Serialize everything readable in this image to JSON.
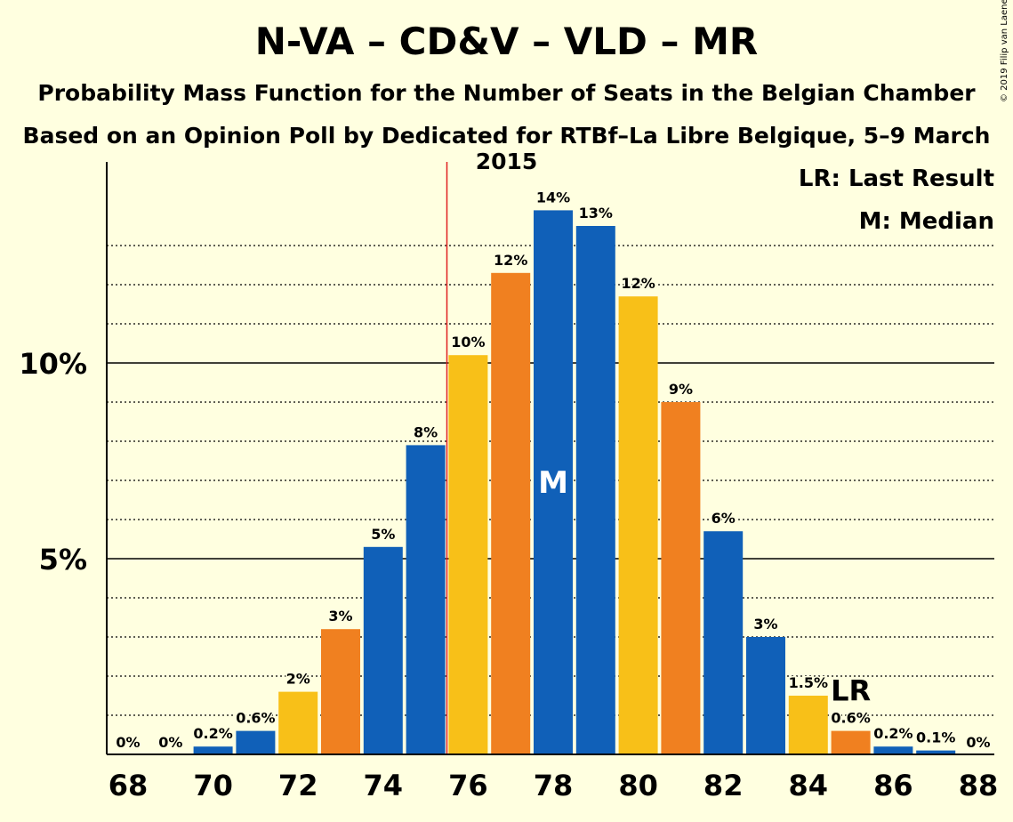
{
  "title": "N-VA – CD&V – VLD – MR",
  "subtitle1": "Probability Mass Function for the Number of Seats in the Belgian Chamber",
  "subtitle2": "Based on an Opinion Poll by Dedicated for RTBf–La Libre Belgique, 5–9 March 2015",
  "copyright": "© 2019 Filip van Laenen",
  "colors": {
    "background": "#FFFFE0",
    "blue": "#1060B8",
    "orange": "#F08020",
    "yellow": "#F8C018",
    "majority_line": "#E02020"
  },
  "chart_data": {
    "type": "bar",
    "x": [
      68,
      69,
      70,
      71,
      72,
      73,
      74,
      75,
      76,
      77,
      78,
      79,
      80,
      81,
      82,
      83,
      84,
      85,
      86,
      87,
      88
    ],
    "values": [
      0,
      0,
      0.2,
      0.6,
      1.6,
      3.2,
      5.3,
      7.9,
      10.2,
      12.3,
      13.9,
      13.5,
      11.7,
      9.0,
      5.7,
      3.0,
      1.5,
      0.6,
      0.2,
      0.1,
      0
    ],
    "labels": [
      "0%",
      "0%",
      "0.2%",
      "0.6%",
      "2%",
      "3%",
      "5%",
      "8%",
      "10%",
      "12%",
      "14%",
      "13%",
      "12%",
      "9%",
      "6%",
      "3%",
      "1.5%",
      "0.6%",
      "0.2%",
      "0.1%",
      "0%"
    ],
    "bar_colors": [
      "#1060B8",
      "#1060B8",
      "#1060B8",
      "#1060B8",
      "#F8C018",
      "#F08020",
      "#1060B8",
      "#1060B8",
      "#F8C018",
      "#F08020",
      "#1060B8",
      "#1060B8",
      "#F8C018",
      "#F08020",
      "#1060B8",
      "#1060B8",
      "#F8C018",
      "#F08020",
      "#1060B8",
      "#1060B8",
      "#1060B8"
    ],
    "x_ticks": [
      "68",
      "70",
      "72",
      "74",
      "76",
      "78",
      "80",
      "82",
      "84",
      "86",
      "88"
    ],
    "y_ticks": [
      {
        "value": 5,
        "label": "5%"
      },
      {
        "value": 10,
        "label": "10%"
      }
    ],
    "ylim": [
      0,
      15
    ],
    "majority_threshold": 75.5,
    "median_seat": 78,
    "median_marker": "M",
    "last_result_seat": 85,
    "last_result_marker": "LR",
    "legend": [
      "LR: Last Result",
      "M: Median"
    ],
    "legend_position": "top-right",
    "grid": true
  }
}
